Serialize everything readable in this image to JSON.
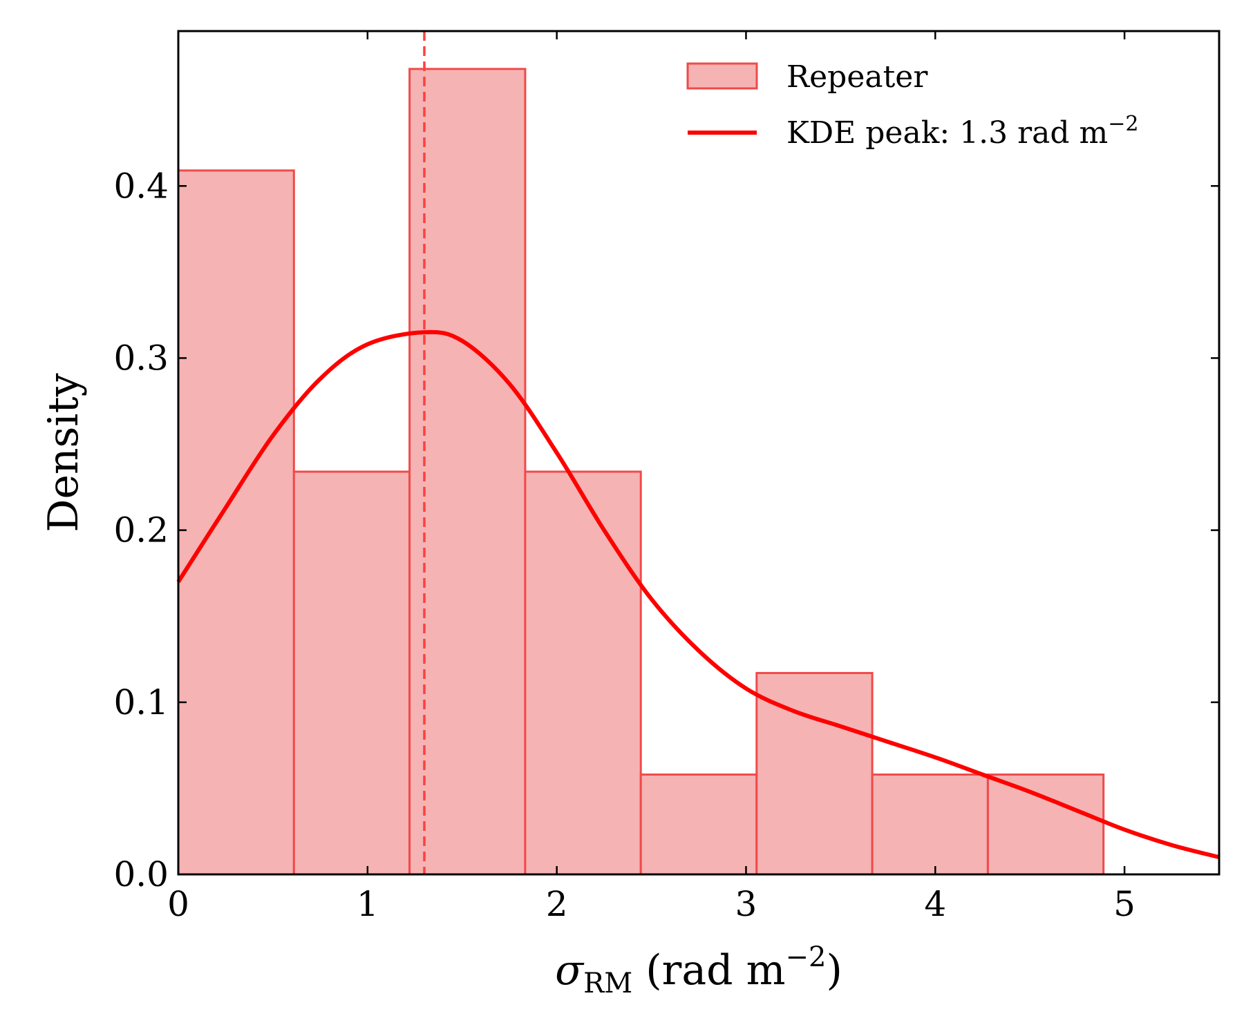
{
  "chart_data": {
    "type": "bar",
    "subtype": "histogram-with-kde",
    "title": "",
    "xlabel": {
      "symbol": "σ",
      "subscript": "RM",
      "unit_prefix": " (rad m",
      "unit_exp": "−2",
      "unit_suffix": ")"
    },
    "ylabel": "Density",
    "xlim": [
      0,
      5.5
    ],
    "ylim": [
      0,
      0.49
    ],
    "xticks": [
      0,
      1,
      2,
      3,
      4,
      5
    ],
    "xtick_labels": [
      "0",
      "1",
      "2",
      "3",
      "4",
      "5"
    ],
    "yticks": [
      0.0,
      0.1,
      0.2,
      0.3,
      0.4
    ],
    "ytick_labels": [
      "0.0",
      "0.1",
      "0.2",
      "0.3",
      "0.4"
    ],
    "grid": false,
    "legend_position": "top-right",
    "histogram": {
      "name": "Repeater",
      "bin_edges": [
        0.0,
        0.611,
        1.222,
        1.833,
        2.444,
        3.056,
        3.667,
        4.278,
        4.889
      ],
      "values": [
        0.409,
        0.234,
        0.468,
        0.234,
        0.058,
        0.117,
        0.058,
        0.058
      ],
      "fill_color": "#f5b3b3",
      "edge_color": "#f04a4a"
    },
    "kde": {
      "name_prefix": "KDE peak: 1.3 rad m",
      "name_exp": "−2",
      "color": "#ff0000",
      "x": [
        0.0,
        0.25,
        0.5,
        0.75,
        1.0,
        1.3,
        1.5,
        1.75,
        2.0,
        2.25,
        2.5,
        2.75,
        3.0,
        3.25,
        3.5,
        3.75,
        4.0,
        4.25,
        4.5,
        4.75,
        5.0,
        5.25,
        5.5
      ],
      "y": [
        0.17,
        0.213,
        0.255,
        0.288,
        0.308,
        0.315,
        0.31,
        0.285,
        0.245,
        0.2,
        0.16,
        0.13,
        0.108,
        0.095,
        0.086,
        0.077,
        0.068,
        0.058,
        0.048,
        0.037,
        0.026,
        0.017,
        0.01
      ]
    },
    "peak_line": {
      "x": 1.3,
      "color": "#ff4040",
      "style": "dashed"
    }
  }
}
